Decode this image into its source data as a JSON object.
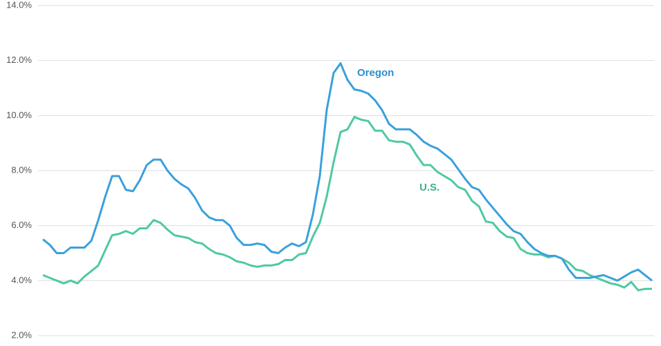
{
  "chart_data": {
    "type": "line",
    "ylim": [
      2,
      14
    ],
    "yticks": [
      {
        "value": 2,
        "label": "2.0%"
      },
      {
        "value": 4,
        "label": "4.0%"
      },
      {
        "value": 6,
        "label": "6.0%"
      },
      {
        "value": 8,
        "label": "8.0%"
      },
      {
        "value": 10,
        "label": "10.0%"
      },
      {
        "value": 12,
        "label": "12.0%"
      },
      {
        "value": 14,
        "label": "14.0%"
      }
    ],
    "grid": true,
    "series": [
      {
        "name": "Oregon",
        "color": "#3aa0dc",
        "values": [
          5.5,
          5.3,
          5.0,
          5.0,
          5.2,
          5.2,
          5.2,
          5.45,
          6.2,
          7.05,
          7.8,
          7.8,
          7.3,
          7.25,
          7.65,
          8.2,
          8.4,
          8.4,
          8.0,
          7.7,
          7.5,
          7.35,
          7.0,
          6.55,
          6.3,
          6.2,
          6.2,
          6.0,
          5.55,
          5.3,
          5.3,
          5.35,
          5.3,
          5.05,
          5.0,
          5.2,
          5.35,
          5.25,
          5.4,
          6.4,
          7.8,
          10.2,
          11.55,
          11.9,
          11.3,
          10.95,
          10.9,
          10.8,
          10.55,
          10.2,
          9.7,
          9.5,
          9.5,
          9.5,
          9.3,
          9.05,
          8.9,
          8.8,
          8.6,
          8.4,
          8.05,
          7.7,
          7.4,
          7.3,
          6.95,
          6.65,
          6.35,
          6.05,
          5.8,
          5.7,
          5.4,
          5.15,
          5.0,
          4.9,
          4.9,
          4.8,
          4.4,
          4.1,
          4.1,
          4.1,
          4.15,
          4.2,
          4.1,
          4.0,
          4.15,
          4.3,
          4.4,
          4.2,
          4.0
        ]
      },
      {
        "name": "U.S.",
        "color": "#4ec9a0",
        "values": [
          4.2,
          4.1,
          4.0,
          3.9,
          4.0,
          3.9,
          4.15,
          4.35,
          4.55,
          5.1,
          5.65,
          5.7,
          5.8,
          5.7,
          5.9,
          5.9,
          6.2,
          6.1,
          5.85,
          5.65,
          5.6,
          5.55,
          5.4,
          5.35,
          5.15,
          5.0,
          4.95,
          4.85,
          4.7,
          4.65,
          4.55,
          4.5,
          4.55,
          4.55,
          4.6,
          4.75,
          4.75,
          4.95,
          5.0,
          5.6,
          6.1,
          7.05,
          8.3,
          9.4,
          9.5,
          9.95,
          9.85,
          9.8,
          9.45,
          9.45,
          9.1,
          9.05,
          9.05,
          8.95,
          8.55,
          8.2,
          8.2,
          7.95,
          7.8,
          7.65,
          7.4,
          7.3,
          6.9,
          6.7,
          6.15,
          6.1,
          5.8,
          5.6,
          5.55,
          5.15,
          5.0,
          4.95,
          4.95,
          4.85,
          4.9,
          4.8,
          4.65,
          4.4,
          4.35,
          4.2,
          4.1,
          4.0,
          3.9,
          3.85,
          3.75,
          3.95,
          3.65,
          3.7,
          3.7
        ]
      }
    ]
  }
}
